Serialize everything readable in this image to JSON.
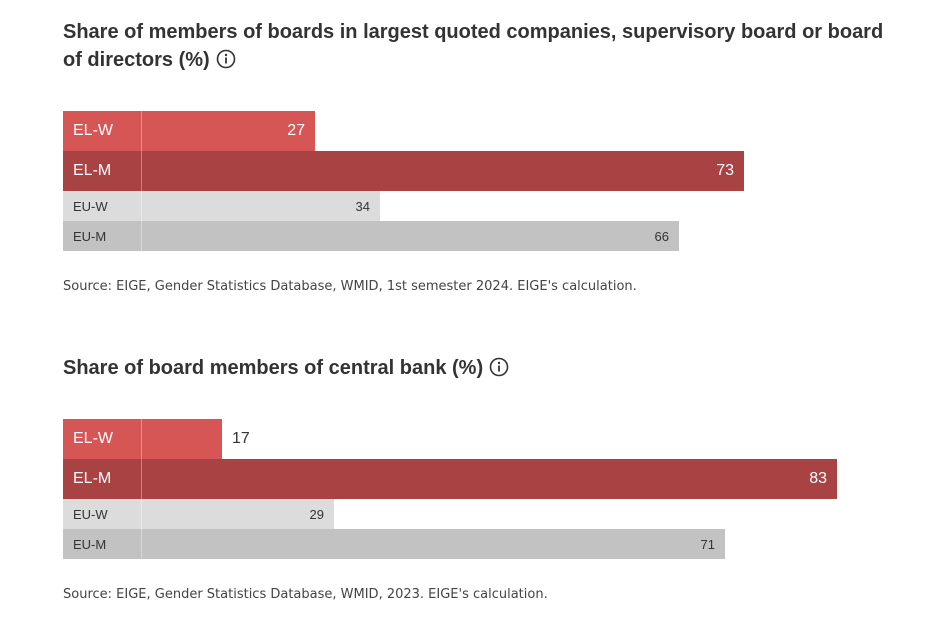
{
  "charts": [
    {
      "title": "Share of members of boards in largest quoted companies, supervisory board or board of directors (%)",
      "source": "Source: EIGE, Gender Statistics Database, WMID, 1st semester 2024. EIGE's calculation.",
      "info_icon": "info-circle-icon"
    },
    {
      "title": "Share of board members of central bank (%)",
      "source": "Source: EIGE, Gender Statistics Database, WMID, 2023. EIGE's calculation.",
      "info_icon": "info-circle-icon"
    }
  ],
  "colors": {
    "EL-W": "#d65656",
    "EL-M": "#a94242",
    "EU-W": "#dcdcdc",
    "EU-M": "#c2c2c3"
  },
  "chart_data": [
    {
      "type": "bar",
      "orientation": "horizontal",
      "title": "Share of members of boards in largest quoted companies, supervisory board or board of directors (%)",
      "categories": [
        "EL-W",
        "EL-M",
        "EU-W",
        "EU-M"
      ],
      "values": [
        27,
        73,
        34,
        66
      ],
      "xlim": [
        0,
        100
      ]
    },
    {
      "type": "bar",
      "orientation": "horizontal",
      "title": "Share of board members of central bank (%)",
      "categories": [
        "EL-W",
        "EL-M",
        "EU-W",
        "EU-M"
      ],
      "values": [
        17,
        83,
        29,
        71
      ],
      "xlim": [
        0,
        100
      ]
    }
  ]
}
